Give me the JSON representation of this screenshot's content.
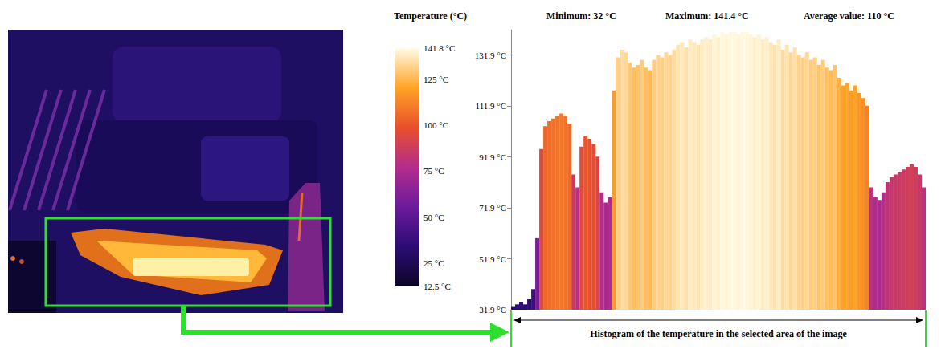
{
  "chart_data": {
    "type": "bar",
    "title": "Histogram of the temperature in the selected area of the image",
    "annotations": [
      "Minimum: 32 °C",
      "Maximum: 141.4 °C",
      "Average value: 110 °C"
    ],
    "categories": [
      null,
      null,
      null,
      null,
      null,
      null,
      null,
      null,
      null,
      null,
      null,
      null,
      null,
      null,
      null,
      null,
      null,
      null,
      null,
      null,
      null,
      null,
      null,
      null,
      null,
      null,
      null,
      null,
      null,
      null,
      null,
      null,
      null,
      null,
      null,
      null,
      null,
      null,
      null,
      null,
      null,
      null,
      null,
      null,
      null,
      null,
      null,
      null,
      null,
      null,
      null,
      null,
      null,
      null,
      null,
      null,
      null,
      null,
      null,
      null,
      null,
      null,
      null,
      null,
      null,
      null,
      null,
      null,
      null,
      null,
      null,
      null,
      null,
      null,
      null,
      null,
      null,
      null,
      null,
      null,
      null,
      null,
      null,
      null,
      null,
      null,
      null,
      null,
      null,
      null,
      null,
      null,
      null,
      null,
      null,
      null,
      null,
      null,
      null,
      null,
      null,
      null,
      null
    ],
    "values": [
      33,
      34,
      35,
      34,
      36,
      40,
      60,
      95,
      104,
      106,
      107,
      108,
      109,
      108,
      105,
      85,
      80,
      96,
      100,
      99,
      97,
      92,
      78,
      74,
      76,
      118,
      131,
      134,
      133,
      129,
      127,
      128,
      130,
      127,
      126,
      130,
      132,
      131,
      133,
      132,
      134,
      136,
      137,
      135,
      138,
      137,
      136,
      138,
      139,
      138,
      140,
      139,
      141,
      140,
      141,
      141,
      140,
      141,
      141,
      140,
      139,
      140,
      138,
      139,
      137,
      136,
      138,
      134,
      136,
      133,
      135,
      132,
      131,
      133,
      130,
      131,
      128,
      130,
      127,
      126,
      128,
      123,
      120,
      121,
      118,
      120,
      117,
      115,
      112,
      80,
      76,
      75,
      78,
      82,
      84,
      85,
      86,
      87,
      88,
      89,
      88,
      85,
      80
    ],
    "ylim": [
      31.9,
      141.9
    ],
    "yticks": [
      {
        "value": 31.9,
        "label": "31.9 °C"
      },
      {
        "value": 51.9,
        "label": "51.9 °C"
      },
      {
        "value": 71.9,
        "label": "71.9 °C"
      },
      {
        "value": 91.9,
        "label": "91.9 °C"
      },
      {
        "value": 111.9,
        "label": "111.9 °C"
      },
      {
        "value": 131.9,
        "label": "131.9 °C"
      }
    ],
    "grid": false,
    "tick_labels": "y",
    "colorbar": {
      "title": "Temperature (°C)",
      "range": [
        12.5,
        141.8
      ],
      "ticks": [
        {
          "value": 12.5,
          "label": "12.5 °C"
        },
        {
          "value": 25,
          "label": "25 °C"
        },
        {
          "value": 50,
          "label": "50 °C"
        },
        {
          "value": 75,
          "label": "75 °C"
        },
        {
          "value": 100,
          "label": "100 °C"
        },
        {
          "value": 125,
          "label": "125 °C"
        },
        {
          "value": 141.8,
          "label": "141.8 °C"
        }
      ]
    }
  }
}
